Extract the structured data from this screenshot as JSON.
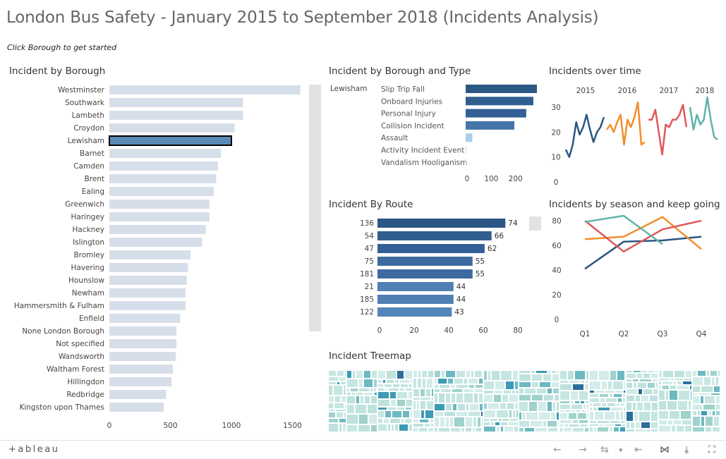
{
  "title": "London Bus Safety - January 2015 to September 2018 (Incidents Analysis)",
  "subtitle": "Click Borough to get started",
  "panels": {
    "borough": "Incident by Borough",
    "type": "Incident by Borough and Type",
    "time": "Incidents over time",
    "route": "Incident By Route",
    "season": "Incidents by season and keep going",
    "treemap": "Incident Treemap"
  },
  "colors": {
    "light_bar": "#d6dfe9",
    "selected_bar": "#5b8ab8",
    "dark_blue": "#2a5783",
    "mid_blue": "#4575a8",
    "teal": "#5fb3ab",
    "orange": "#f28e2b",
    "red": "#e15759",
    "treemap_bg": "#c6e6e2"
  },
  "chart_data": [
    {
      "type": "bar",
      "title": "Incident by Borough",
      "orientation": "horizontal",
      "categories": [
        "Westminster",
        "Southwark",
        "Lambeth",
        "Croydon",
        "Lewisham",
        "Barnet",
        "Camden",
        "Brent",
        "Ealing",
        "Greenwich",
        "Haringey",
        "Hackney",
        "Islington",
        "Bromley",
        "Havering",
        "Hounslow",
        "Newham",
        "Hammersmith & Fulham",
        "Enfield",
        "None London Borough",
        "Not specified",
        "Wandsworth",
        "Waltham Forest",
        "Hillingdon",
        "Redbridge",
        "Kingston upon Thames"
      ],
      "values": [
        1565,
        1095,
        1095,
        1025,
        1000,
        915,
        890,
        875,
        855,
        820,
        820,
        790,
        760,
        665,
        645,
        635,
        625,
        625,
        580,
        550,
        550,
        545,
        520,
        510,
        465,
        445
      ],
      "selected": "Lewisham",
      "xticks": [
        "0",
        "500",
        "1000",
        "1500"
      ],
      "xlim": [
        0,
        1600
      ]
    },
    {
      "type": "bar",
      "title": "Incident by Borough and Type",
      "orientation": "horizontal",
      "group": "Lewisham",
      "categories": [
        "Slip Trip Fall",
        "Onboard Injuries",
        "Personal Injury",
        "Collision Incident",
        "Assault",
        "Activity Incident Event",
        "Vandalism Hooliganism"
      ],
      "values": [
        300,
        285,
        255,
        205,
        28,
        3,
        2
      ],
      "xticks": [
        "0",
        "100",
        "200"
      ],
      "xlim": [
        0,
        310
      ]
    },
    {
      "type": "line",
      "title": "Incidents over time",
      "years": [
        "2015",
        "2016",
        "2017",
        "2018"
      ],
      "yticks": [
        "0",
        "10",
        "20",
        "30"
      ],
      "ylim": [
        0,
        36
      ],
      "series": [
        {
          "year": "2015",
          "color": "#2a5783",
          "values": [
            13,
            10,
            15,
            24,
            19,
            22,
            27,
            21,
            16,
            20,
            22,
            26
          ]
        },
        {
          "year": "2016",
          "color": "#f28e2b",
          "values": [
            21,
            23,
            20,
            24,
            27,
            15,
            25,
            22,
            26,
            32,
            15,
            16
          ]
        },
        {
          "year": "2017",
          "color": "#e15759",
          "values": [
            25,
            25,
            29,
            20,
            11,
            23,
            22,
            25,
            25,
            27,
            31,
            22
          ]
        },
        {
          "year": "2018",
          "color": "#5fb3ab",
          "values": [
            30,
            21,
            27,
            23,
            25,
            34,
            25,
            18,
            17
          ]
        }
      ]
    },
    {
      "type": "bar",
      "title": "Incident By Route",
      "orientation": "horizontal",
      "categories": [
        "136",
        "54",
        "47",
        "75",
        "181",
        "21",
        "185",
        "122"
      ],
      "values": [
        74,
        66,
        62,
        55,
        55,
        44,
        44,
        43
      ],
      "xticks": [
        "0",
        "20",
        "40",
        "60",
        "80"
      ],
      "xlim": [
        0,
        85
      ]
    },
    {
      "type": "line",
      "title": "Incidents by season and keep going",
      "categories": [
        "Q1",
        "Q2",
        "Q3",
        "Q4"
      ],
      "yticks": [
        "0",
        "20",
        "40",
        "60",
        "80"
      ],
      "ylim": [
        0,
        90
      ],
      "series": [
        {
          "color": "#2a5783",
          "values": [
            41,
            63,
            64,
            67
          ]
        },
        {
          "color": "#f28e2b",
          "values": [
            65,
            67,
            83,
            57
          ]
        },
        {
          "color": "#e15759",
          "values": [
            80,
            55,
            73,
            80
          ]
        },
        {
          "color": "#5fb3ab",
          "values": [
            79,
            84,
            61,
            null
          ]
        }
      ]
    }
  ],
  "toolbar": {
    "logo": "+ableau",
    "undo": "←",
    "redo": "→",
    "revert": "⇆",
    "dropdown": "▾",
    "pause": "⇤",
    "share": "⋈",
    "download": "⤓",
    "fullscreen": "⛶"
  }
}
